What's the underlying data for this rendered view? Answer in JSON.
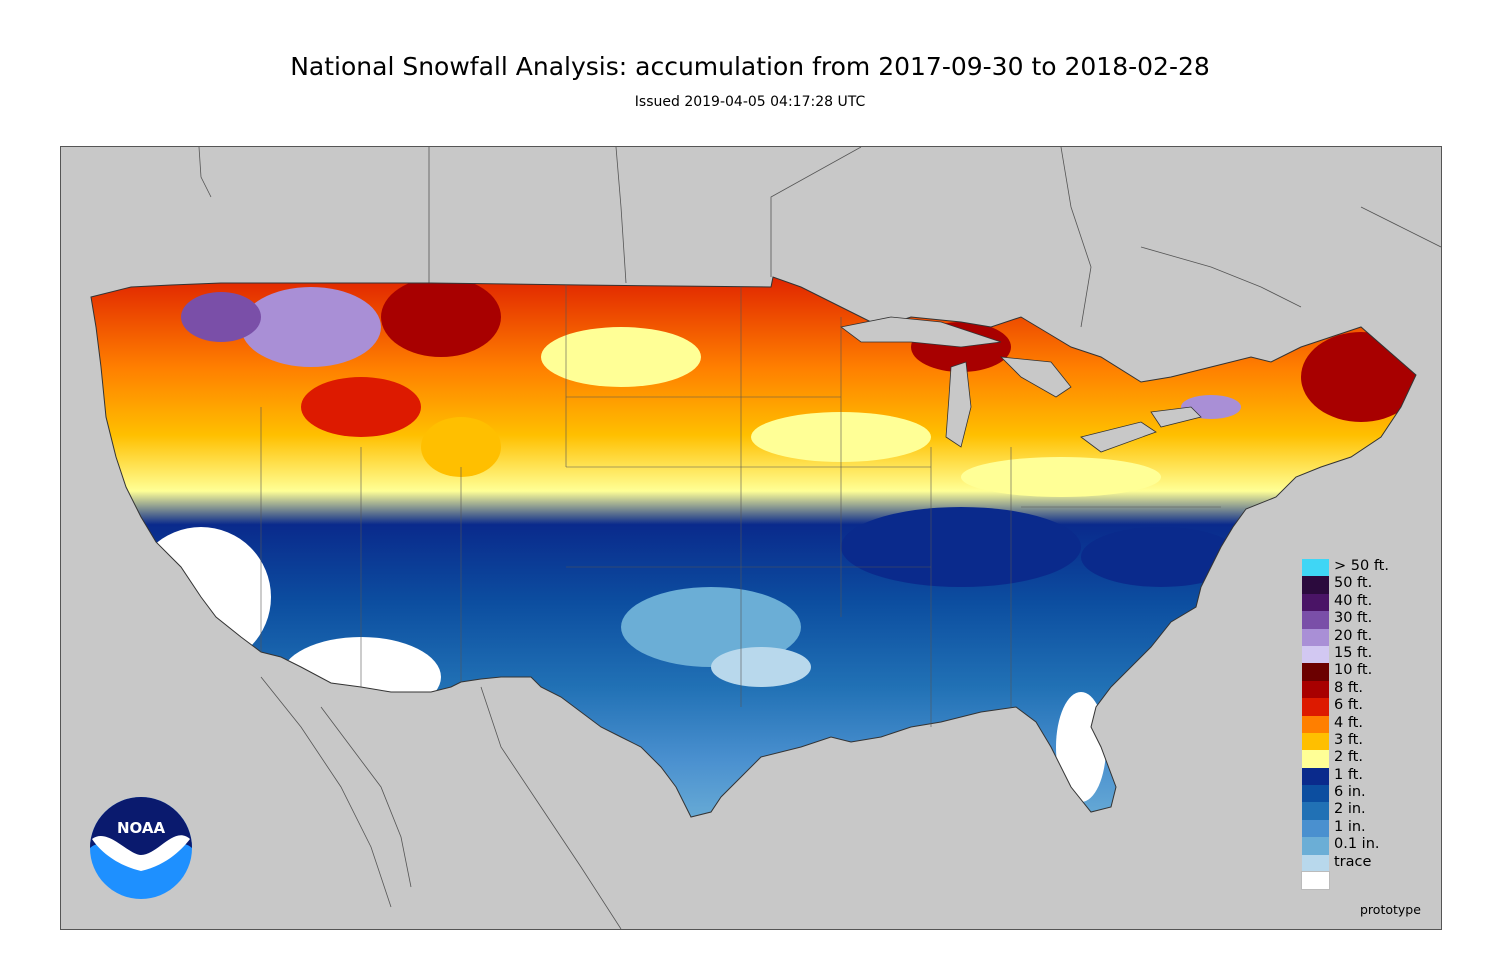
{
  "header": {
    "title": "National Snowfall Analysis: accumulation from 2017-09-30 to 2018-02-28",
    "issued": "Issued 2019-04-05 04:17:28 UTC"
  },
  "map": {
    "background_color": "#c8c8c8",
    "land_outline_color": "#333333"
  },
  "legend": {
    "items": [
      {
        "label": "> 50 ft.",
        "color": "#3fd6f5"
      },
      {
        "label": "50 ft.",
        "color": "#2b0a3d"
      },
      {
        "label": "40 ft.",
        "color": "#4a1466"
      },
      {
        "label": "30 ft.",
        "color": "#7a4fa8"
      },
      {
        "label": "20 ft.",
        "color": "#a98fd6"
      },
      {
        "label": "15 ft.",
        "color": "#d2c8f2"
      },
      {
        "label": "10 ft.",
        "color": "#6b0000"
      },
      {
        "label": "8 ft.",
        "color": "#a80000"
      },
      {
        "label": "6 ft.",
        "color": "#dd1a00"
      },
      {
        "label": "4 ft.",
        "color": "#ff7f00"
      },
      {
        "label": "3 ft.",
        "color": "#ffbf00"
      },
      {
        "label": "2 ft.",
        "color": "#ffff96"
      },
      {
        "label": "1 ft.",
        "color": "#0a2a8c"
      },
      {
        "label": "6 in.",
        "color": "#0c4ea0"
      },
      {
        "label": "2 in.",
        "color": "#2171b5"
      },
      {
        "label": "1 in.",
        "color": "#4a90cf"
      },
      {
        "label": "0.1 in.",
        "color": "#6baed6"
      },
      {
        "label": "trace",
        "color": "#b8d8ec"
      },
      {
        "label": "",
        "color": "#ffffff"
      }
    ]
  },
  "footer": {
    "note": "prototype",
    "logo_text": "NOAA"
  }
}
